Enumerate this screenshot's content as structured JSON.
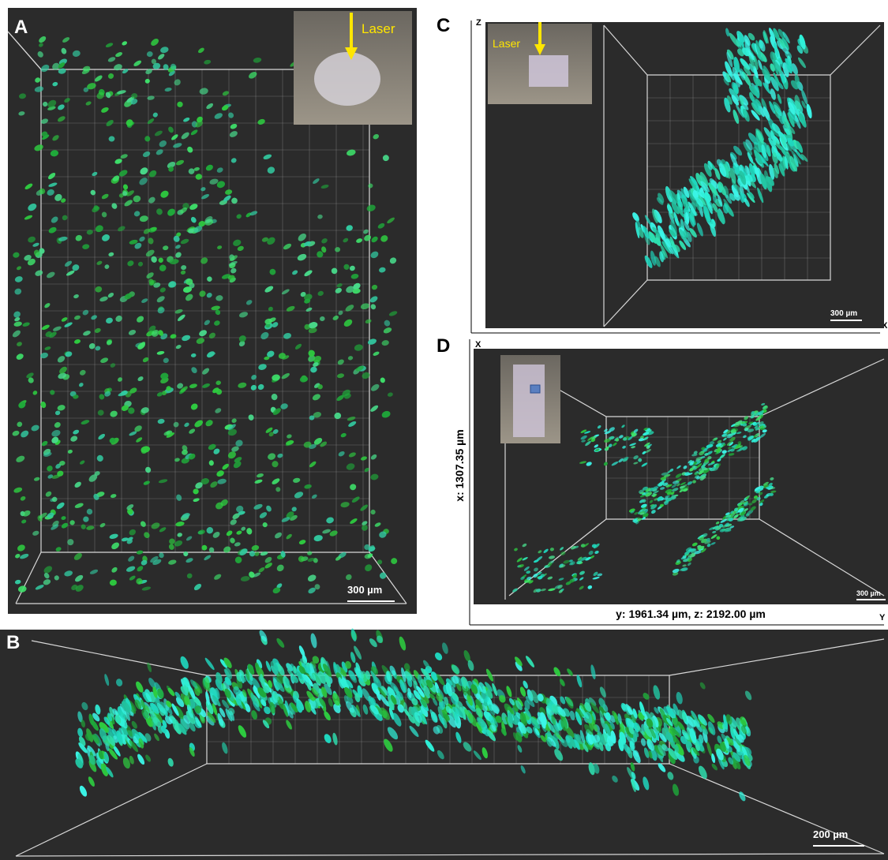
{
  "panels": [
    {
      "label": "A",
      "inset": "Laser",
      "scale_bar": "300 µm"
    },
    {
      "label": "B",
      "scale_bar": "200 µm"
    },
    {
      "label": "C",
      "inset": "Laser",
      "scale_bar": "300 µm",
      "axes": [
        "Z",
        "X"
      ]
    },
    {
      "label": "D",
      "scale_bar": "300 µm",
      "axes": [
        "X",
        "Y"
      ],
      "x_dimension": "x: 1307.35 µm",
      "yz_dimension": "y: 1961.34 µm, z: 2192.00 µm"
    }
  ]
}
